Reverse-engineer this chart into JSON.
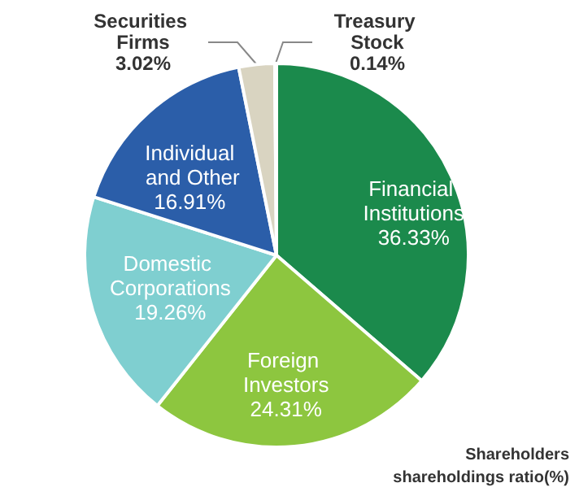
{
  "chart_data": {
    "type": "pie",
    "categories": [
      "Financial Institutions",
      "Foreign Investors",
      "Domestic Corporations",
      "Individual and Other",
      "Securities Firms",
      "Treasury Stock"
    ],
    "values": [
      36.33,
      24.31,
      19.26,
      16.91,
      3.02,
      0.14
    ],
    "value_labels": [
      "36.33%",
      "24.31%",
      "19.26%",
      "16.91%",
      "3.02%",
      "0.14%"
    ],
    "colors": [
      "#1b8a4c",
      "#8dc63f",
      "#7fcfd0",
      "#2b5ea9",
      "#d9d4c1",
      "#a0a0a0"
    ],
    "annotations": [
      "Shareholders",
      "shareholdings ratio(%)"
    ],
    "legend": false
  }
}
